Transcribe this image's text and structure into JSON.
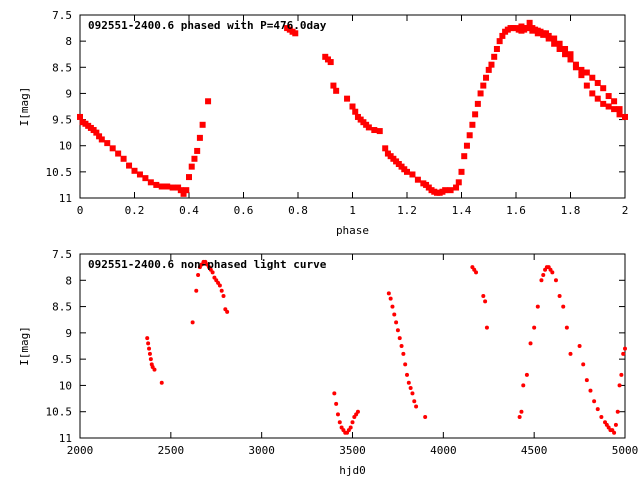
{
  "chart_data": [
    {
      "type": "scatter",
      "title": "092551-2400.6 phased with P=476.0day",
      "xlabel": "phase",
      "ylabel": "I[mag]",
      "xlim": [
        0,
        2
      ],
      "ylim": [
        7.5,
        11
      ],
      "y_inverted": true,
      "grid": false,
      "x_ticks": [
        "0",
        "0.2",
        "0.4",
        "0.6",
        "0.8",
        "1",
        "1.2",
        "1.4",
        "1.6",
        "1.8",
        "2"
      ],
      "x_tick_values": [
        0,
        0.2,
        0.4,
        0.6,
        0.8,
        1.0,
        1.2,
        1.4,
        1.6,
        1.8,
        2.0
      ],
      "y_ticks": [
        "7.5",
        "8",
        "8.5",
        "9",
        "9.5",
        "10",
        "10.5",
        "11"
      ],
      "y_tick_values": [
        7.5,
        8,
        8.5,
        9,
        9.5,
        10,
        10.5,
        11
      ],
      "color": "#ff0000",
      "series": [
        {
          "x": [
            0.0,
            0.01,
            0.02,
            0.03,
            0.04,
            0.05,
            0.06,
            0.07,
            0.08,
            0.1,
            0.12,
            0.14,
            0.16,
            0.18,
            0.2,
            0.22,
            0.24,
            0.26,
            0.28,
            0.3,
            0.32,
            0.34,
            0.36,
            0.37,
            0.38,
            0.39,
            0.4,
            0.41,
            0.42,
            0.43,
            0.44,
            0.45,
            0.47,
            0.76,
            0.77,
            0.78,
            0.79,
            0.9,
            0.91,
            0.92,
            0.93,
            0.94,
            0.98,
            1.0,
            1.01,
            1.02,
            1.03,
            1.04,
            1.05,
            1.06,
            1.08,
            1.1,
            1.12,
            1.13,
            1.14,
            1.15,
            1.16,
            1.17,
            1.18,
            1.19,
            1.2,
            1.22,
            1.24,
            1.26,
            1.27,
            1.28,
            1.29,
            1.3,
            1.31,
            1.32,
            1.33,
            1.34,
            1.36,
            1.38,
            1.39,
            1.4,
            1.41,
            1.42,
            1.43,
            1.44,
            1.45,
            1.46,
            1.47,
            1.48,
            1.49,
            1.5,
            1.51,
            1.52,
            1.53,
            1.54,
            1.55,
            1.56,
            1.57,
            1.58,
            1.59,
            1.6,
            1.61,
            1.62,
            1.63,
            1.64,
            1.65,
            1.66,
            1.67,
            1.68,
            1.69,
            1.7,
            1.71,
            1.72,
            1.74,
            1.76,
            1.78,
            1.8,
            1.82,
            1.84,
            1.86,
            1.88,
            1.9,
            1.92,
            1.94,
            1.96,
            1.98,
            2.0,
            1.62,
            1.64,
            1.66,
            1.68,
            1.7,
            1.72,
            1.74,
            1.76,
            1.78,
            1.8,
            1.82,
            1.84,
            1.86,
            1.88,
            1.9,
            1.92,
            1.94,
            1.96,
            1.98
          ],
          "y": [
            9.45,
            9.55,
            9.58,
            9.62,
            9.66,
            9.7,
            9.75,
            9.82,
            9.88,
            9.95,
            10.05,
            10.15,
            10.25,
            10.38,
            10.48,
            10.55,
            10.62,
            10.7,
            10.75,
            10.78,
            10.78,
            10.8,
            10.8,
            10.85,
            10.92,
            10.85,
            10.6,
            10.4,
            10.25,
            10.1,
            9.85,
            9.6,
            9.15,
            7.75,
            7.78,
            7.82,
            7.85,
            8.3,
            8.35,
            8.4,
            8.85,
            8.95,
            9.1,
            9.25,
            9.35,
            9.45,
            9.5,
            9.55,
            9.6,
            9.65,
            9.7,
            9.72,
            10.05,
            10.15,
            10.2,
            10.25,
            10.3,
            10.35,
            10.4,
            10.45,
            10.5,
            10.55,
            10.65,
            10.72,
            10.75,
            10.8,
            10.85,
            10.88,
            10.9,
            10.9,
            10.88,
            10.85,
            10.85,
            10.8,
            10.7,
            10.5,
            10.2,
            10.0,
            9.8,
            9.6,
            9.4,
            9.2,
            9.0,
            8.85,
            8.7,
            8.55,
            8.45,
            8.3,
            8.15,
            8.0,
            7.9,
            7.82,
            7.78,
            7.75,
            7.75,
            7.75,
            7.78,
            7.8,
            7.78,
            7.75,
            7.65,
            7.75,
            7.78,
            7.8,
            7.82,
            7.85,
            7.85,
            7.95,
            8.05,
            8.15,
            8.25,
            8.35,
            8.5,
            8.65,
            8.85,
            9.0,
            9.1,
            9.2,
            9.25,
            9.3,
            9.4,
            9.45,
            7.72,
            7.75,
            7.8,
            7.85,
            7.88,
            7.9,
            7.95,
            8.05,
            8.15,
            8.25,
            8.45,
            8.55,
            8.6,
            8.7,
            8.8,
            8.9,
            9.05,
            9.15,
            9.3
          ]
        }
      ]
    },
    {
      "type": "scatter",
      "title": "092551-2400.6 non-phased light curve",
      "xlabel": "hjd0",
      "ylabel": "I[mag]",
      "xlim": [
        2000,
        5000
      ],
      "ylim": [
        7.5,
        11
      ],
      "y_inverted": true,
      "grid": false,
      "x_ticks": [
        "2000",
        "2500",
        "3000",
        "3500",
        "4000",
        "4500",
        "5000"
      ],
      "x_tick_values": [
        2000,
        2500,
        3000,
        3500,
        4000,
        4500,
        5000
      ],
      "y_ticks": [
        "7.5",
        "8",
        "8.5",
        "9",
        "9.5",
        "10",
        "10.5",
        "11"
      ],
      "y_tick_values": [
        7.5,
        8,
        8.5,
        9,
        9.5,
        10,
        10.5,
        11
      ],
      "color": "#ff0000",
      "series": [
        {
          "x": [
            2370,
            2375,
            2380,
            2385,
            2390,
            2395,
            2400,
            2410,
            2450,
            2620,
            2640,
            2650,
            2660,
            2670,
            2680,
            2690,
            2700,
            2710,
            2720,
            2730,
            2740,
            2750,
            2760,
            2770,
            2780,
            2790,
            2800,
            2810,
            3400,
            3410,
            3420,
            3430,
            3440,
            3450,
            3460,
            3470,
            3480,
            3490,
            3500,
            3510,
            3520,
            3530,
            3700,
            3710,
            3720,
            3730,
            3740,
            3750,
            3760,
            3770,
            3780,
            3790,
            3800,
            3810,
            3820,
            3830,
            3840,
            3850,
            3900,
            4160,
            4170,
            4180,
            4220,
            4230,
            4240,
            4420,
            4430,
            4440,
            4460,
            4480,
            4500,
            4520,
            4540,
            4550,
            4560,
            4570,
            4580,
            4590,
            4600,
            4620,
            4640,
            4660,
            4680,
            4700,
            4750,
            4770,
            4790,
            4810,
            4830,
            4850,
            4870,
            4890,
            4900,
            4910,
            4920,
            4930,
            4940,
            4950,
            4960,
            4970,
            4980,
            4990,
            5000
          ],
          "y": [
            9.1,
            9.2,
            9.3,
            9.4,
            9.5,
            9.6,
            9.65,
            9.7,
            9.95,
            8.8,
            8.2,
            7.9,
            7.75,
            7.7,
            7.65,
            7.65,
            7.7,
            7.75,
            7.8,
            7.85,
            7.95,
            8.0,
            8.05,
            8.1,
            8.2,
            8.3,
            8.55,
            8.6,
            10.15,
            10.35,
            10.55,
            10.7,
            10.8,
            10.85,
            10.9,
            10.9,
            10.85,
            10.8,
            10.7,
            10.6,
            10.55,
            10.5,
            8.25,
            8.35,
            8.5,
            8.65,
            8.8,
            8.95,
            9.1,
            9.25,
            9.4,
            9.6,
            9.8,
            9.95,
            10.05,
            10.15,
            10.3,
            10.4,
            10.6,
            7.75,
            7.8,
            7.85,
            8.3,
            8.4,
            8.9,
            10.6,
            10.5,
            10.0,
            9.8,
            9.2,
            8.9,
            8.5,
            8.0,
            7.9,
            7.8,
            7.75,
            7.75,
            7.8,
            7.85,
            8.0,
            8.3,
            8.5,
            8.9,
            9.4,
            9.25,
            9.6,
            9.9,
            10.1,
            10.3,
            10.45,
            10.6,
            10.7,
            10.75,
            10.8,
            10.85,
            10.85,
            10.9,
            10.75,
            10.5,
            10.0,
            9.8,
            9.4,
            9.3
          ]
        }
      ]
    }
  ]
}
